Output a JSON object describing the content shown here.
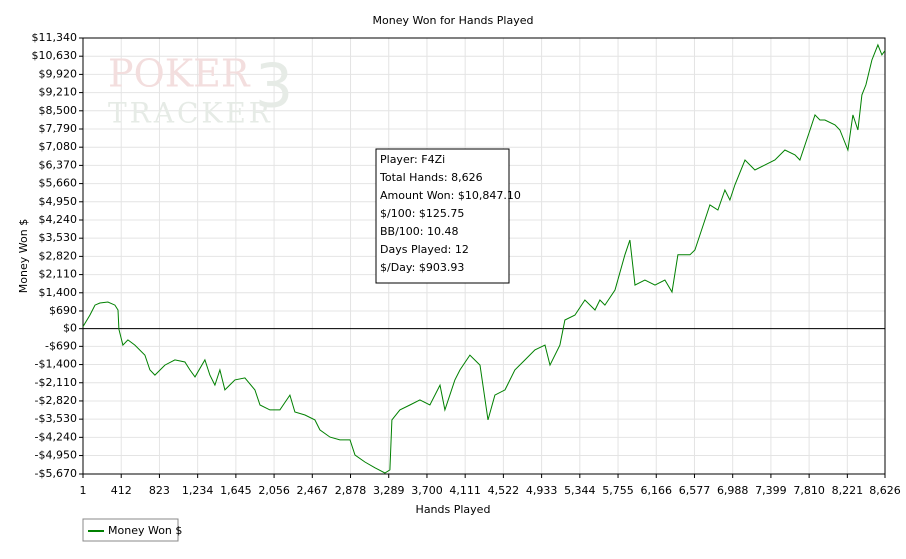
{
  "chart_data": {
    "type": "line",
    "title": "Money Won for Hands Played",
    "x_label": "Hands Played",
    "y_label": "Money Won $",
    "watermark": [
      "POKER",
      "TRACKER",
      "3"
    ],
    "annotation": [
      "Player: F4Zi",
      "Total Hands: 8,626",
      "Amount Won: $10,847.10",
      "$/100: $125.75",
      "BB/100: 10.48",
      "Days Played: 12",
      "$/Day: $903.93"
    ],
    "x": [
      1,
      75,
      130,
      183,
      269,
      344,
      377,
      387,
      430,
      484,
      559,
      667,
      721,
      774,
      882,
      989,
      1097,
      1151,
      1205,
      1312,
      1366,
      1420,
      1473,
      1527,
      1635,
      1742,
      1850,
      1904,
      2011,
      2119,
      2226,
      2280,
      2388,
      2495,
      2549,
      2657,
      2764,
      2872,
      2926,
      3033,
      3141,
      3248,
      3302,
      3323,
      3409,
      3517,
      3624,
      3732,
      3840,
      3893,
      4001,
      4055,
      4162,
      4270,
      4356,
      4431,
      4539,
      4646,
      4754,
      4861,
      4969,
      5023,
      5130,
      5184,
      5291,
      5399,
      5507,
      5560,
      5614,
      5722,
      5829,
      5883,
      5937,
      6044,
      6152,
      6259,
      6335,
      6399,
      6528,
      6582,
      6689,
      6743,
      6829,
      6904,
      6958,
      7012,
      7120,
      7227,
      7335,
      7442,
      7550,
      7658,
      7711,
      7819,
      7873,
      7926,
      7980,
      8088,
      8141,
      8227,
      8281,
      8335,
      8378,
      8421,
      8485,
      8550,
      8593,
      8626
    ],
    "series": [
      {
        "name": "Money Won $",
        "color": "#008000",
        "values": [
          80,
          530,
          920,
          1000,
          1040,
          920,
          730,
          -20,
          -640,
          -440,
          -640,
          -1030,
          -1610,
          -1810,
          -1420,
          -1220,
          -1300,
          -1610,
          -1880,
          -1220,
          -1810,
          -2200,
          -1610,
          -2390,
          -2000,
          -1920,
          -2390,
          -2980,
          -3170,
          -3170,
          -2590,
          -3250,
          -3370,
          -3560,
          -3950,
          -4230,
          -4340,
          -4340,
          -4930,
          -5200,
          -5430,
          -5630,
          -5510,
          -3560,
          -3170,
          -2980,
          -2780,
          -2980,
          -2200,
          -3170,
          -2000,
          -1610,
          -1030,
          -1420,
          -3560,
          -2590,
          -2390,
          -1610,
          -1220,
          -830,
          -640,
          -1420,
          -640,
          340,
          530,
          1120,
          730,
          1120,
          920,
          1510,
          2880,
          3460,
          1700,
          1900,
          1700,
          1900,
          1430,
          2880,
          2880,
          3070,
          4240,
          4830,
          4630,
          5410,
          5020,
          5610,
          6580,
          6190,
          6390,
          6580,
          6970,
          6780,
          6580,
          7750,
          8340,
          8140,
          8140,
          7950,
          7750,
          6970,
          8340,
          7750,
          9120,
          9510,
          10480,
          11070,
          10680,
          10847
        ]
      }
    ],
    "xlim": [
      1,
      8626
    ],
    "ylim": [
      -5670,
      11340
    ],
    "xticks": [
      1,
      412,
      823,
      {
        "value": 1234,
        "label": "1,234"
      },
      {
        "value": 1645,
        "label": "1,645"
      },
      {
        "value": 2056,
        "label": "2,056"
      },
      {
        "value": 2467,
        "label": "2,467"
      },
      {
        "value": 2878,
        "label": "2,878"
      },
      {
        "value": 3289,
        "label": "3,289"
      },
      {
        "value": 3700,
        "label": "3,700"
      },
      {
        "value": 4111,
        "label": "4,111"
      },
      {
        "value": 4522,
        "label": "4,522"
      },
      {
        "value": 4933,
        "label": "4,933"
      },
      {
        "value": 5344,
        "label": "5,344"
      },
      {
        "value": 5755,
        "label": "5,755"
      },
      {
        "value": 6166,
        "label": "6,166"
      },
      {
        "value": 6577,
        "label": "6,577"
      },
      {
        "value": 6988,
        "label": "6,988"
      },
      {
        "value": 7399,
        "label": "7,399"
      },
      {
        "value": 7810,
        "label": "7,810"
      },
      {
        "value": 8221,
        "label": "8,221"
      },
      {
        "value": 8626,
        "label": "8,626"
      }
    ],
    "yticks": [
      {
        "value": 11340,
        "label": "$11,340"
      },
      {
        "value": 10630,
        "label": "$10,630"
      },
      {
        "value": 9920,
        "label": "$9,920"
      },
      {
        "value": 9210,
        "label": "$9,210"
      },
      {
        "value": 8500,
        "label": "$8,500"
      },
      {
        "value": 7790,
        "label": "$7,790"
      },
      {
        "value": 7080,
        "label": "$7,080"
      },
      {
        "value": 6370,
        "label": "$6,370"
      },
      {
        "value": 5660,
        "label": "$5,660"
      },
      {
        "value": 4950,
        "label": "$4,950"
      },
      {
        "value": 4240,
        "label": "$4,240"
      },
      {
        "value": 3530,
        "label": "$3,530"
      },
      {
        "value": 2820,
        "label": "$2,820"
      },
      {
        "value": 2110,
        "label": "$2,110"
      },
      {
        "value": 1400,
        "label": "$1,400"
      },
      {
        "value": 690,
        "label": "$690"
      },
      {
        "value": 0,
        "label": "$0"
      },
      {
        "value": -690,
        "label": "-$690"
      },
      {
        "value": -1400,
        "label": "-$1,400"
      },
      {
        "value": -2110,
        "label": "-$2,110"
      },
      {
        "value": -2820,
        "label": "-$2,820"
      },
      {
        "value": -3530,
        "label": "-$3,530"
      },
      {
        "value": -4240,
        "label": "-$4,240"
      },
      {
        "value": -4950,
        "label": "-$4,950"
      },
      {
        "value": -5670,
        "label": "-$5,670"
      }
    ],
    "grid": true
  }
}
